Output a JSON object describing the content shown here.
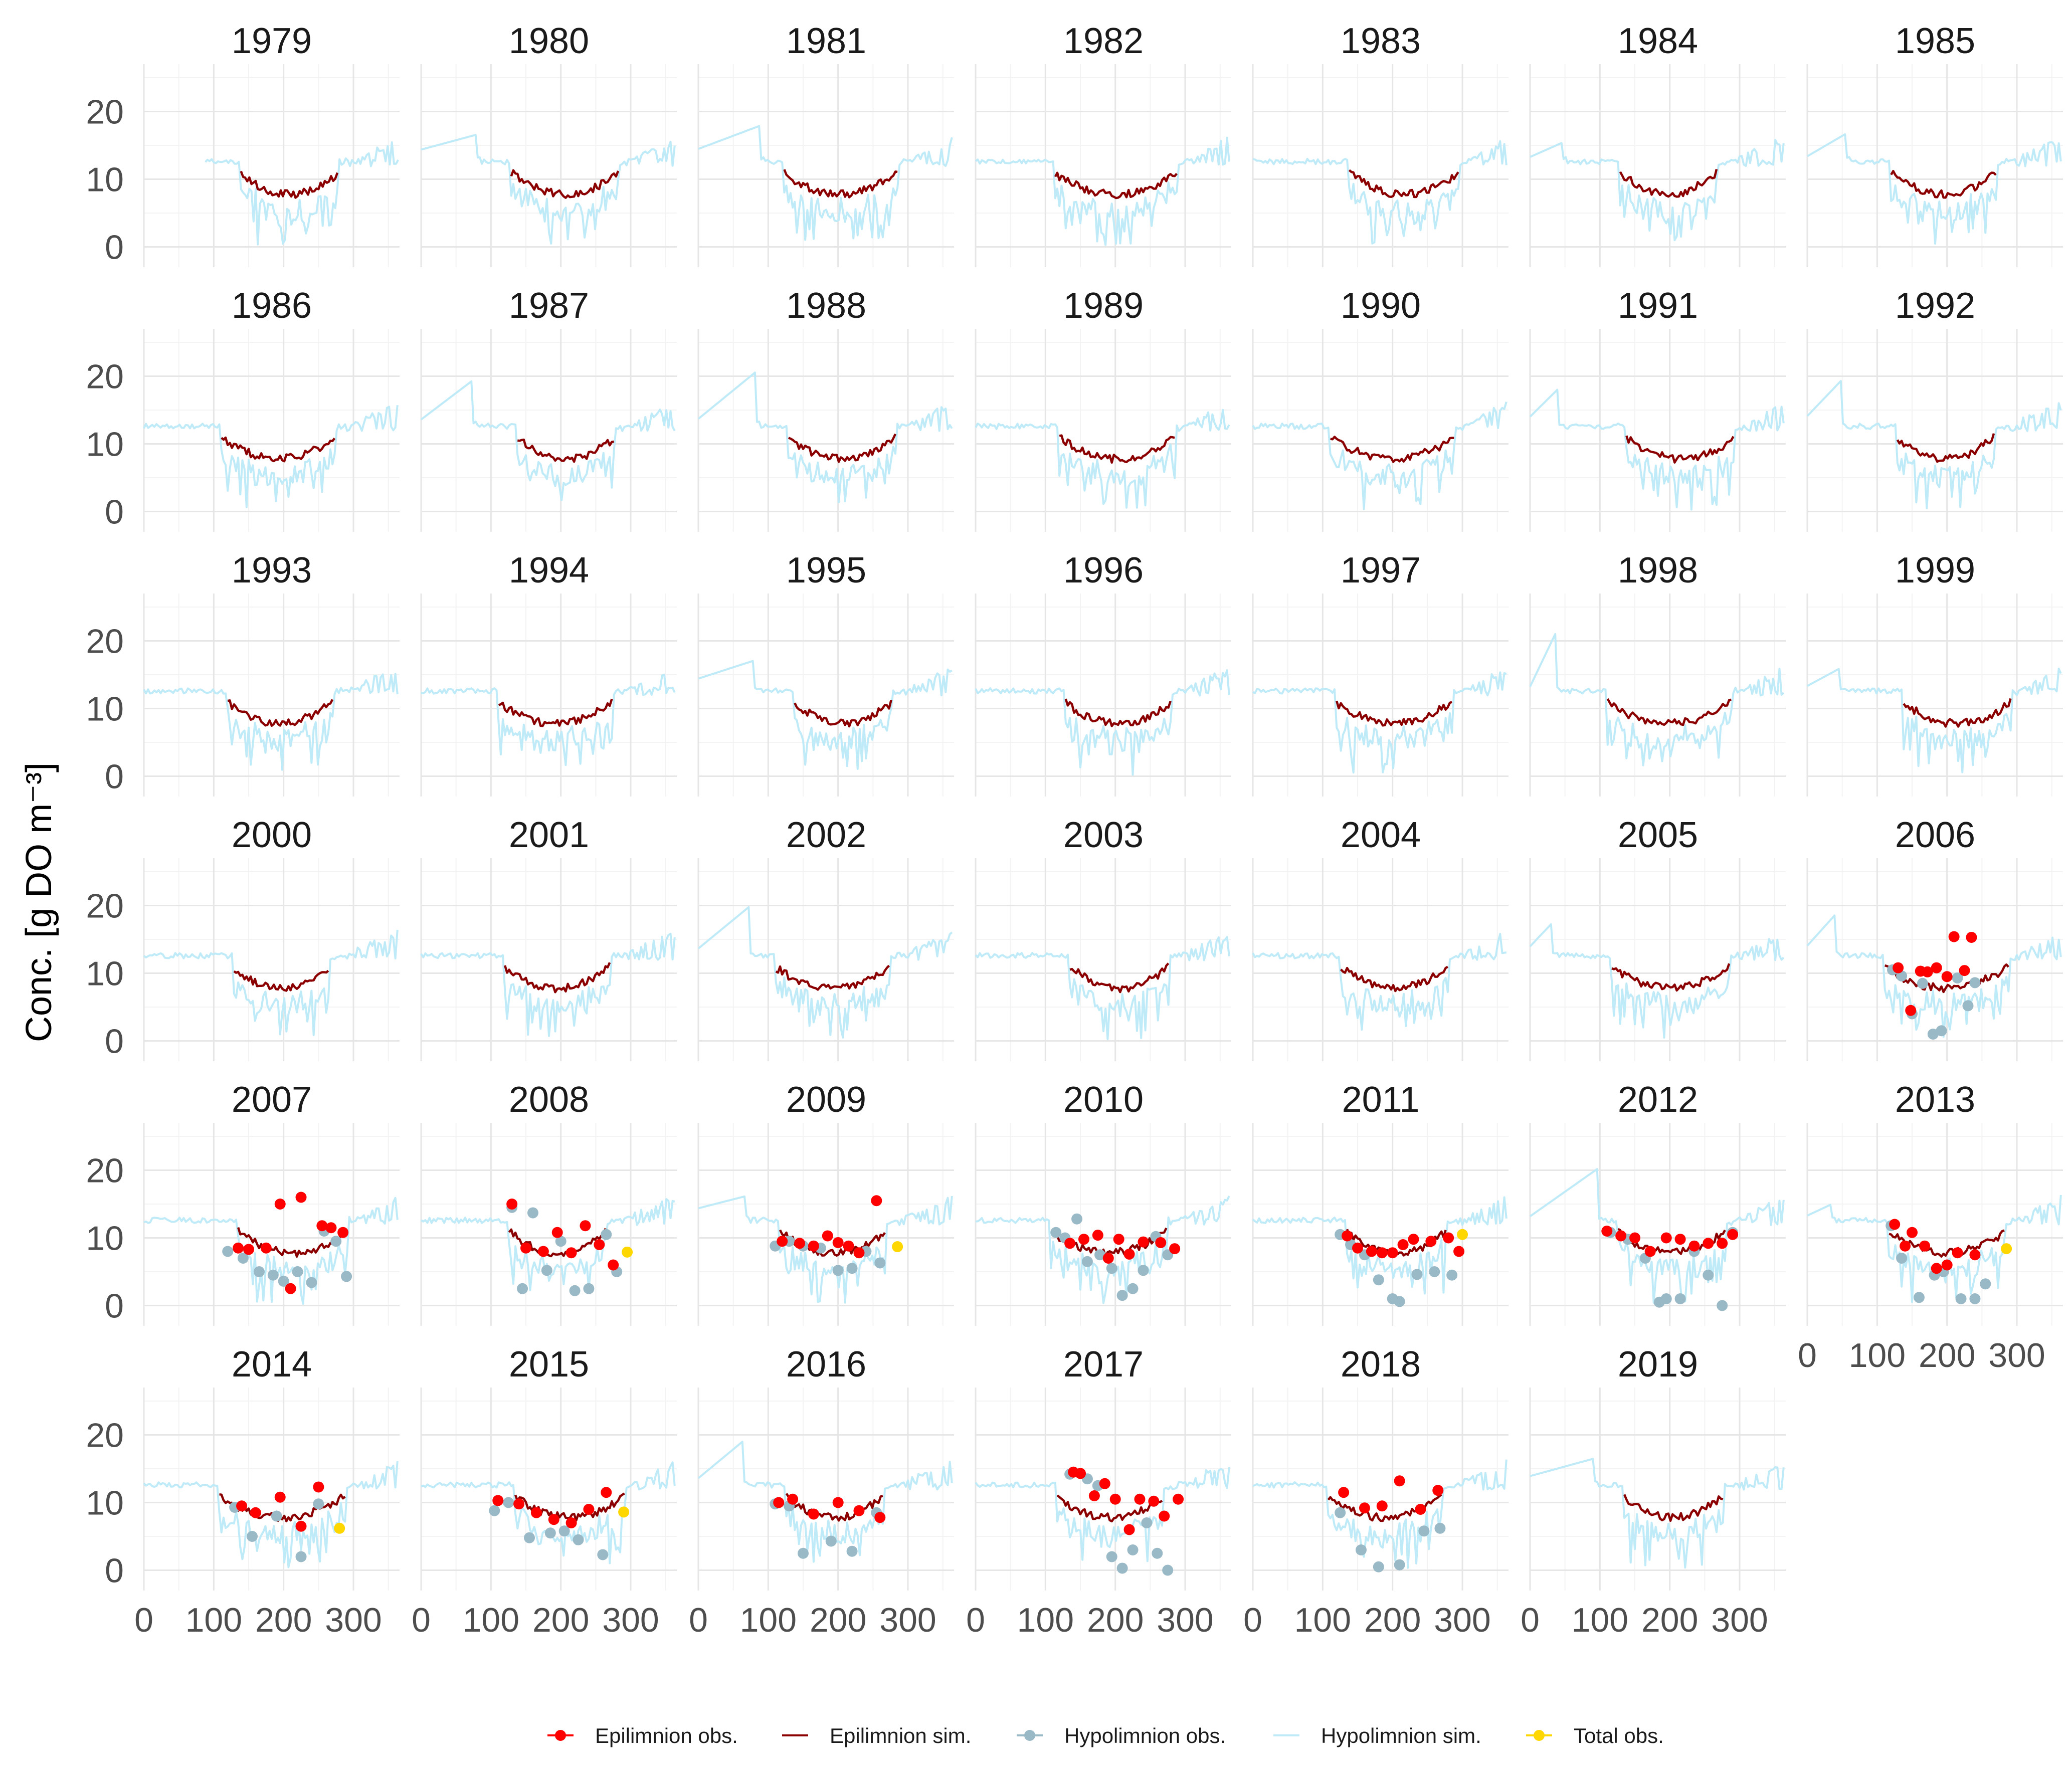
{
  "chart_data": {
    "type": "line",
    "layout": "faceted small multiples (one panel per year)",
    "ylabel": "Conc. [g DO m⁻³]",
    "xlabel": "",
    "x_unit": "day of year",
    "xlim": [
      0,
      366
    ],
    "ylim": [
      -3,
      27
    ],
    "x_ticks": [
      0,
      100,
      200,
      300
    ],
    "x_tick_labels": [
      "0",
      "100",
      "200",
      "300"
    ],
    "y_ticks": [
      0,
      10,
      20
    ],
    "y_tick_labels": [
      "0",
      "10",
      "20"
    ],
    "grid": true,
    "legend_position": "bottom",
    "panels": [
      "1979",
      "1980",
      "1981",
      "1982",
      "1983",
      "1984",
      "1985",
      "1986",
      "1987",
      "1988",
      "1989",
      "1990",
      "1991",
      "1992",
      "1993",
      "1994",
      "1995",
      "1996",
      "1997",
      "1998",
      "1999",
      "2000",
      "2001",
      "2002",
      "2003",
      "2004",
      "2005",
      "2006",
      "2007",
      "2008",
      "2009",
      "2010",
      "2011",
      "2012",
      "2013",
      "2014",
      "2015",
      "2016",
      "2017",
      "2018",
      "2019"
    ],
    "series": [
      {
        "name": "Epilimnion obs.",
        "kind": "points",
        "color": "#ff0000"
      },
      {
        "name": "Epilimnion sim.",
        "kind": "line",
        "color": "#8b0000"
      },
      {
        "name": "Hypolimnion obs.",
        "kind": "points",
        "color": "#9ab9c7"
      },
      {
        "name": "Hypolimnion sim.",
        "kind": "line",
        "color": "#bfeaf8"
      },
      {
        "name": "Total obs.",
        "kind": "points",
        "color": "#ffd700"
      }
    ],
    "observations": {
      "2006": {
        "epi": [
          [
            130,
            10.8
          ],
          [
            148,
            4.5
          ],
          [
            162,
            10.3
          ],
          [
            172,
            10.2
          ],
          [
            185,
            10.8
          ],
          [
            200,
            9.5
          ],
          [
            210,
            15.4
          ],
          [
            225,
            10.4
          ],
          [
            235,
            15.3
          ]
        ],
        "hypo": [
          [
            122,
            10.5
          ],
          [
            135,
            9.6
          ],
          [
            150,
            4.0
          ],
          [
            165,
            8.5
          ],
          [
            180,
            1.0
          ],
          [
            192,
            1.5
          ],
          [
            215,
            9.3
          ],
          [
            230,
            5.2
          ],
          [
            240,
            8.6
          ]
        ]
      },
      "2007": {
        "epi": [
          [
            135,
            8.5
          ],
          [
            150,
            8.3
          ],
          [
            175,
            8.5
          ],
          [
            195,
            15.0
          ],
          [
            210,
            2.5
          ],
          [
            225,
            16.0
          ],
          [
            255,
            11.8
          ],
          [
            268,
            11.5
          ],
          [
            285,
            10.8
          ]
        ],
        "hypo": [
          [
            120,
            8.0
          ],
          [
            142,
            7.0
          ],
          [
            165,
            5.0
          ],
          [
            185,
            4.5
          ],
          [
            200,
            3.6
          ],
          [
            220,
            5.0
          ],
          [
            240,
            3.4
          ],
          [
            258,
            11.0
          ],
          [
            275,
            9.5
          ],
          [
            290,
            4.3
          ]
        ]
      },
      "2008": {
        "epi": [
          [
            130,
            15.0
          ],
          [
            150,
            8.5
          ],
          [
            175,
            8.0
          ],
          [
            195,
            10.8
          ],
          [
            215,
            7.8
          ],
          [
            235,
            11.8
          ],
          [
            255,
            9.0
          ],
          [
            275,
            6.0
          ]
        ],
        "hypo": [
          [
            130,
            14.5
          ],
          [
            145,
            2.5
          ],
          [
            160,
            13.7
          ],
          [
            180,
            5.2
          ],
          [
            200,
            9.5
          ],
          [
            220,
            2.2
          ],
          [
            240,
            2.5
          ],
          [
            265,
            10.5
          ],
          [
            280,
            5.0
          ]
        ],
        "total": [
          [
            295,
            7.9
          ]
        ]
      },
      "2009": {
        "epi": [
          [
            120,
            9.5
          ],
          [
            145,
            9.2
          ],
          [
            165,
            8.8
          ],
          [
            185,
            10.3
          ],
          [
            200,
            9.3
          ],
          [
            215,
            8.8
          ],
          [
            230,
            7.8
          ],
          [
            255,
            15.5
          ]
        ],
        "hypo": [
          [
            110,
            8.8
          ],
          [
            130,
            9.5
          ],
          [
            150,
            8.8
          ],
          [
            175,
            8.5
          ],
          [
            200,
            5.2
          ],
          [
            220,
            5.5
          ],
          [
            240,
            8.0
          ],
          [
            260,
            6.3
          ]
        ],
        "total": [
          [
            285,
            8.7
          ]
        ]
      },
      "2010": {
        "epi": [
          [
            135,
            9.2
          ],
          [
            155,
            9.8
          ],
          [
            175,
            10.4
          ],
          [
            190,
            7.0
          ],
          [
            205,
            9.8
          ],
          [
            220,
            7.6
          ],
          [
            240,
            9.4
          ],
          [
            265,
            9.3
          ],
          [
            285,
            8.4
          ]
        ],
        "hypo": [
          [
            115,
            10.8
          ],
          [
            128,
            10.0
          ],
          [
            145,
            12.8
          ],
          [
            160,
            6.5
          ],
          [
            178,
            7.5
          ],
          [
            195,
            5.5
          ],
          [
            210,
            1.5
          ],
          [
            225,
            2.5
          ],
          [
            240,
            5.2
          ],
          [
            258,
            10.2
          ],
          [
            275,
            7.5
          ]
        ]
      },
      "2011": {
        "epi": [
          [
            135,
            10.3
          ],
          [
            150,
            8.5
          ],
          [
            170,
            8.0
          ],
          [
            185,
            7.8
          ],
          [
            200,
            7.8
          ],
          [
            215,
            9.0
          ],
          [
            230,
            9.8
          ],
          [
            255,
            9.5
          ],
          [
            280,
            10.0
          ],
          [
            295,
            8.0
          ]
        ],
        "hypo": [
          [
            125,
            10.5
          ],
          [
            140,
            9.0
          ],
          [
            160,
            7.5
          ],
          [
            180,
            3.8
          ],
          [
            200,
            1.0
          ],
          [
            210,
            0.6
          ],
          [
            235,
            4.6
          ],
          [
            260,
            5.0
          ],
          [
            285,
            4.5
          ]
        ],
        "total": [
          [
            300,
            10.5
          ]
        ]
      },
      "2012": {
        "epi": [
          [
            110,
            11.0
          ],
          [
            130,
            10.3
          ],
          [
            150,
            10.0
          ],
          [
            172,
            8.0
          ],
          [
            195,
            10.0
          ],
          [
            215,
            9.8
          ],
          [
            235,
            8.8
          ],
          [
            255,
            9.2
          ],
          [
            275,
            9.2
          ],
          [
            290,
            10.5
          ]
        ],
        "hypo": [
          [
            115,
            10.8
          ],
          [
            140,
            9.8
          ],
          [
            165,
            7.0
          ],
          [
            185,
            0.5
          ],
          [
            195,
            1.0
          ],
          [
            215,
            1.0
          ],
          [
            235,
            8.0
          ],
          [
            255,
            4.5
          ],
          [
            275,
            0.0
          ],
          [
            290,
            10.8
          ]
        ]
      },
      "2013": {
        "epi": [
          [
            125,
            12.0
          ],
          [
            140,
            8.8
          ],
          [
            150,
            10.8
          ],
          [
            168,
            8.8
          ],
          [
            185,
            5.5
          ],
          [
            200,
            6.0
          ],
          [
            215,
            7.8
          ],
          [
            240,
            7.5
          ]
        ],
        "hypo": [
          [
            120,
            11.8
          ],
          [
            135,
            7.0
          ],
          [
            160,
            1.2
          ],
          [
            182,
            4.5
          ],
          [
            195,
            5.0
          ],
          [
            220,
            1.0
          ],
          [
            240,
            1.0
          ],
          [
            255,
            3.2
          ]
        ],
        "total": [
          [
            285,
            8.4
          ]
        ]
      },
      "2014": {
        "epi": [
          [
            140,
            9.5
          ],
          [
            160,
            8.5
          ],
          [
            195,
            10.8
          ],
          [
            225,
            6.5
          ],
          [
            250,
            12.3
          ]
        ],
        "hypo": [
          [
            130,
            9.3
          ],
          [
            155,
            5.0
          ],
          [
            190,
            8.0
          ],
          [
            225,
            2.0
          ],
          [
            250,
            9.8
          ]
        ],
        "total": [
          [
            280,
            6.2
          ]
        ]
      },
      "2015": {
        "epi": [
          [
            110,
            10.3
          ],
          [
            140,
            9.8
          ],
          [
            165,
            8.5
          ],
          [
            190,
            7.5
          ],
          [
            215,
            7.0
          ],
          [
            240,
            9.0
          ],
          [
            265,
            11.5
          ]
        ],
        "hypo": [
          [
            105,
            8.8
          ],
          [
            125,
            10.0
          ],
          [
            155,
            4.8
          ],
          [
            185,
            5.5
          ],
          [
            205,
            5.8
          ],
          [
            225,
            4.5
          ],
          [
            260,
            2.3
          ]
        ],
        "total": [
          [
            290,
            8.6
          ]
        ]
      },
      "2016": {
        "epi": [
          [
            115,
            10.0
          ],
          [
            135,
            10.5
          ],
          [
            165,
            8.3
          ],
          [
            200,
            10.0
          ],
          [
            230,
            8.8
          ],
          [
            260,
            7.8
          ]
        ],
        "hypo": [
          [
            110,
            9.8
          ],
          [
            130,
            9.5
          ],
          [
            150,
            2.5
          ],
          [
            190,
            4.3
          ],
          [
            220,
            2.8
          ],
          [
            255,
            8.5
          ]
        ]
      },
      "2017": {
        "epi": [
          [
            140,
            14.5
          ],
          [
            150,
            14.3
          ],
          [
            170,
            11.0
          ],
          [
            185,
            12.8
          ],
          [
            200,
            10.5
          ],
          [
            220,
            6.0
          ],
          [
            235,
            10.5
          ],
          [
            255,
            10.2
          ],
          [
            270,
            8.0
          ],
          [
            290,
            10.5
          ]
        ],
        "hypo": [
          [
            135,
            14.2
          ],
          [
            160,
            13.5
          ],
          [
            175,
            12.5
          ],
          [
            195,
            2.0
          ],
          [
            210,
            0.3
          ],
          [
            225,
            3.0
          ],
          [
            245,
            7.0
          ],
          [
            260,
            2.5
          ],
          [
            275,
            0.0
          ]
        ]
      },
      "2018": {
        "epi": [
          [
            130,
            11.5
          ],
          [
            160,
            9.2
          ],
          [
            185,
            9.5
          ],
          [
            210,
            13.2
          ],
          [
            240,
            9.0
          ],
          [
            265,
            11.8
          ]
        ],
        "hypo": [
          [
            125,
            8.5
          ],
          [
            155,
            3.0
          ],
          [
            180,
            0.5
          ],
          [
            210,
            0.8
          ],
          [
            245,
            5.8
          ],
          [
            268,
            6.2
          ]
        ]
      }
    }
  },
  "legend": {
    "items": [
      {
        "label": "Epilimnion obs.",
        "color": "#ff0000",
        "kind": "point"
      },
      {
        "label": "Epilimnion sim.",
        "color": "#8b0000",
        "kind": "line"
      },
      {
        "label": "Hypolimnion obs.",
        "color": "#9ab9c7",
        "kind": "point"
      },
      {
        "label": "Hypolimnion sim.",
        "color": "#bfeaf8",
        "kind": "line"
      },
      {
        "label": "Total obs.",
        "color": "#ffd700",
        "kind": "point"
      }
    ]
  }
}
